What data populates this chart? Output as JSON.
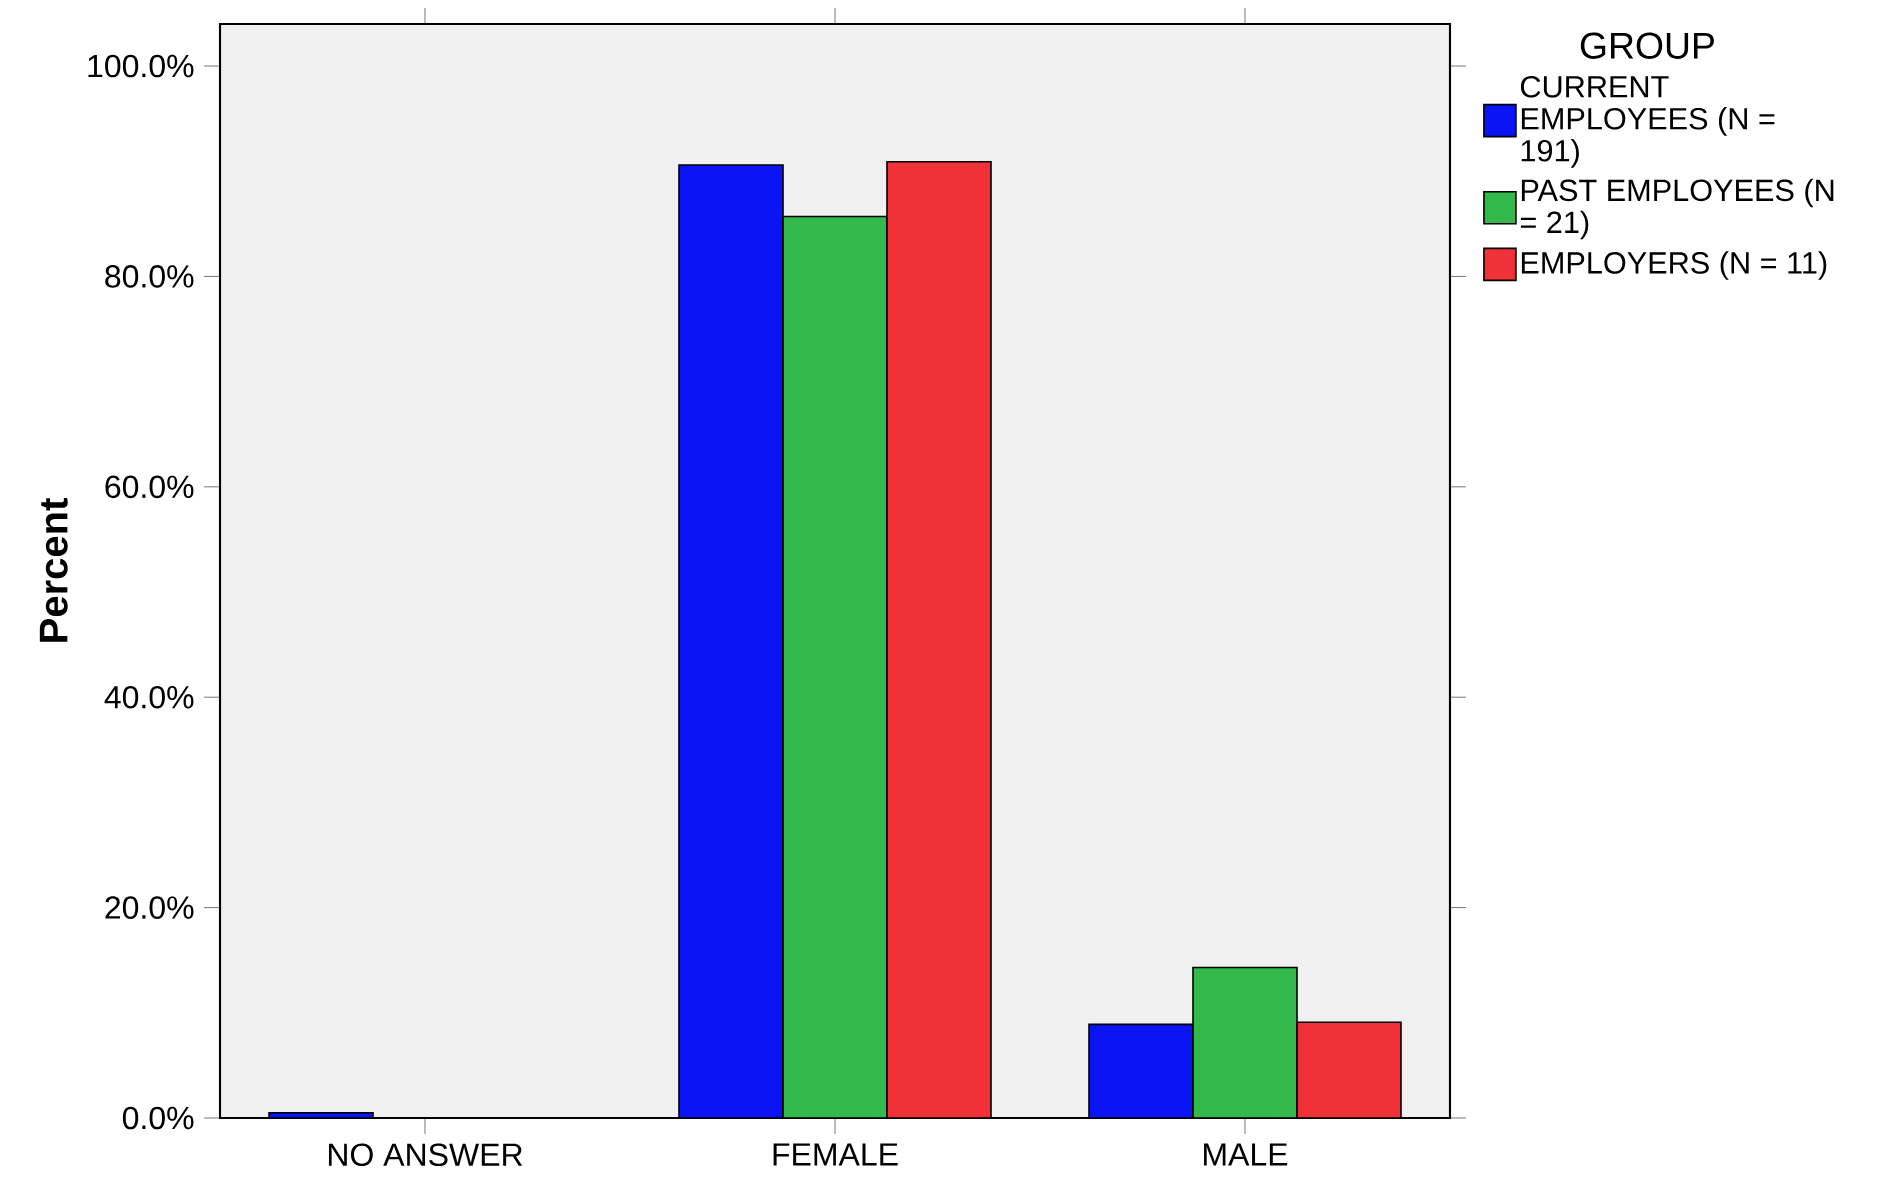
{
  "chart_data": {
    "type": "bar",
    "ylabel": "Percent",
    "legend_title": "GROUP",
    "categories": [
      "NO ANSWER",
      "FEMALE",
      "MALE"
    ],
    "series": [
      {
        "name": "CURRENT EMPLOYEES (N = 191)",
        "color": "#0a14f5",
        "values": [
          0.5,
          90.6,
          8.9
        ]
      },
      {
        "name": "PAST EMPLOYEES (N = 21)",
        "color": "#33b84a",
        "values": [
          0,
          85.7,
          14.3
        ]
      },
      {
        "name": "EMPLOYERS (N = 11)",
        "color": "#f03238",
        "values": [
          0,
          90.9,
          9.1
        ]
      }
    ],
    "ylim": [
      0,
      104
    ],
    "yticks": [
      {
        "value": 0,
        "label": "0.0%"
      },
      {
        "value": 20,
        "label": "20.0%"
      },
      {
        "value": 40,
        "label": "40.0%"
      },
      {
        "value": 60,
        "label": "60.0%"
      },
      {
        "value": 80,
        "label": "80.0%"
      },
      {
        "value": 100,
        "label": "100.0%"
      }
    ],
    "grid": false,
    "legend": "right"
  }
}
